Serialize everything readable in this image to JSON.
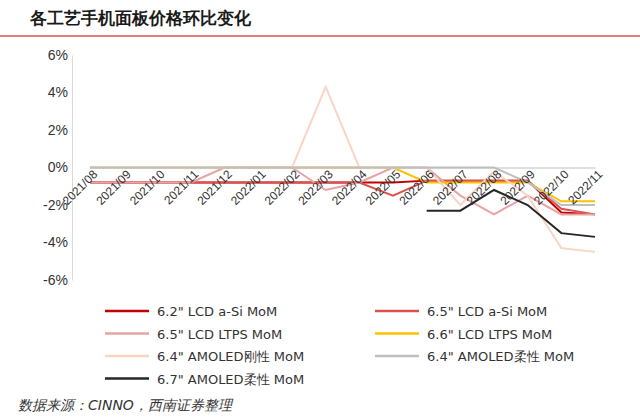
{
  "chart_data": {
    "type": "line",
    "title": "各工艺手机面板价格环比变化",
    "source": "数据来源：CINNO，西南证券整理",
    "categories": [
      "2021/08",
      "2021/09",
      "2021/10",
      "2021/11",
      "2021/12",
      "2022/01",
      "2022/02",
      "2022/03",
      "2022/04",
      "2022/05",
      "2022/06",
      "2022/07",
      "2022/08",
      "2022/09",
      "2022/10",
      "2022/11"
    ],
    "ylim": [
      -6,
      6
    ],
    "yticks": [
      {
        "value": 6,
        "label": "6%"
      },
      {
        "value": 4,
        "label": "4%"
      },
      {
        "value": 2,
        "label": "2%"
      },
      {
        "value": 0,
        "label": "0%"
      },
      {
        "value": -2,
        "label": "-2%"
      },
      {
        "value": -4,
        "label": "-4%"
      },
      {
        "value": -6,
        "label": "-6%"
      }
    ],
    "grid": false,
    "legend": "bottom",
    "series": [
      {
        "name": "6.2\" LCD a-Si MoM",
        "color": "#c00000",
        "values": [
          -0.8,
          -0.8,
          -0.8,
          -0.8,
          -0.8,
          -0.8,
          -0.8,
          -0.8,
          -0.8,
          -0.8,
          -0.7,
          -0.7,
          -0.7,
          -0.7,
          -2.4,
          -2.5
        ]
      },
      {
        "name": "6.5\" LCD a-Si MoM",
        "color": "#d9534f",
        "values": [
          -0.8,
          -0.8,
          -0.8,
          -0.8,
          -0.8,
          -0.8,
          -0.8,
          -0.8,
          -0.8,
          -1.5,
          -0.7,
          -0.7,
          -0.7,
          -0.7,
          -2.2,
          -2.5
        ]
      },
      {
        "name": "6.5\" LCD LTPS MoM",
        "color": "#e8a3a3",
        "values": [
          -0.8,
          -0.8,
          -0.8,
          -0.8,
          0,
          0,
          0,
          -1.2,
          -0.8,
          0,
          0,
          -1.5,
          -2.5,
          -1.5,
          -2.5,
          -2.5
        ]
      },
      {
        "name": "6.6\" LCD LTPS MoM",
        "color": "#ffc000",
        "values": [
          0,
          0,
          0,
          0,
          0,
          0,
          0,
          0,
          0,
          0,
          -0.8,
          -0.8,
          -0.8,
          -0.8,
          -1.8,
          -1.8
        ]
      },
      {
        "name": "6.4\" AMOLED刚性 MoM",
        "color": "#f8d5c4",
        "values": [
          0,
          0,
          0,
          0,
          0,
          0,
          0,
          4.3,
          0,
          0,
          0,
          -2,
          -0.2,
          -1.5,
          -4.3,
          -4.5
        ]
      },
      {
        "name": "6.4\" AMOLED柔性 MoM",
        "color": "#bfbfbf",
        "values": [
          0,
          0,
          0,
          0,
          0,
          0,
          0,
          0,
          0,
          0,
          0,
          0,
          0,
          -0.8,
          -2,
          -2
        ]
      },
      {
        "name": "6.7\" AMOLED柔性 MoM",
        "color": "#262626",
        "values": [
          null,
          null,
          null,
          null,
          null,
          null,
          null,
          null,
          null,
          null,
          -2.3,
          -2.3,
          -1.2,
          -2,
          -3.5,
          -3.7
        ]
      }
    ]
  }
}
